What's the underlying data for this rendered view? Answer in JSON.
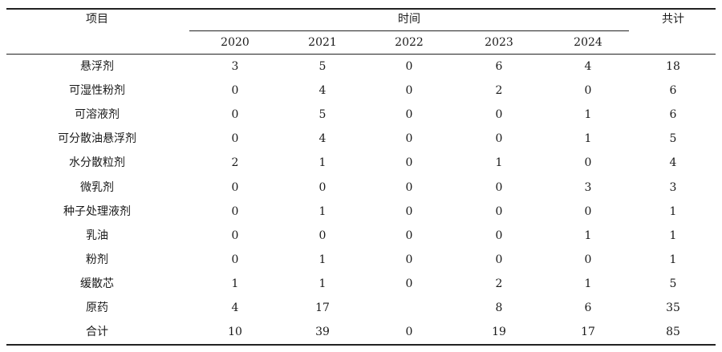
{
  "header": {
    "item": "项目",
    "time": "时间",
    "total": "共计",
    "years": [
      "2020",
      "2021",
      "2022",
      "2023",
      "2024"
    ]
  },
  "rows": [
    {
      "label": "悬浮剂",
      "values": [
        "3",
        "5",
        "0",
        "6",
        "4"
      ],
      "total": "18"
    },
    {
      "label": "可湿性粉剂",
      "values": [
        "0",
        "4",
        "0",
        "2",
        "0"
      ],
      "total": "6"
    },
    {
      "label": "可溶液剂",
      "values": [
        "0",
        "5",
        "0",
        "0",
        "1"
      ],
      "total": "6"
    },
    {
      "label": "可分散油悬浮剂",
      "values": [
        "0",
        "4",
        "0",
        "0",
        "1"
      ],
      "total": "5"
    },
    {
      "label": "水分散粒剂",
      "values": [
        "2",
        "1",
        "0",
        "1",
        "0"
      ],
      "total": "4"
    },
    {
      "label": "微乳剂",
      "values": [
        "0",
        "0",
        "0",
        "0",
        "3"
      ],
      "total": "3"
    },
    {
      "label": "种子处理液剂",
      "values": [
        "0",
        "1",
        "0",
        "0",
        "0"
      ],
      "total": "1"
    },
    {
      "label": "乳油",
      "values": [
        "0",
        "0",
        "0",
        "0",
        "1"
      ],
      "total": "1"
    },
    {
      "label": "粉剂",
      "values": [
        "0",
        "1",
        "0",
        "0",
        "0"
      ],
      "total": "1"
    },
    {
      "label": "缓散芯",
      "values": [
        "1",
        "1",
        "0",
        "2",
        "1"
      ],
      "total": "5"
    },
    {
      "label": "原药",
      "values": [
        "4",
        "17",
        "",
        "8",
        "6"
      ],
      "total": "35"
    },
    {
      "label": "合计",
      "values": [
        "10",
        "39",
        "0",
        "19",
        "17"
      ],
      "total": "85"
    }
  ]
}
